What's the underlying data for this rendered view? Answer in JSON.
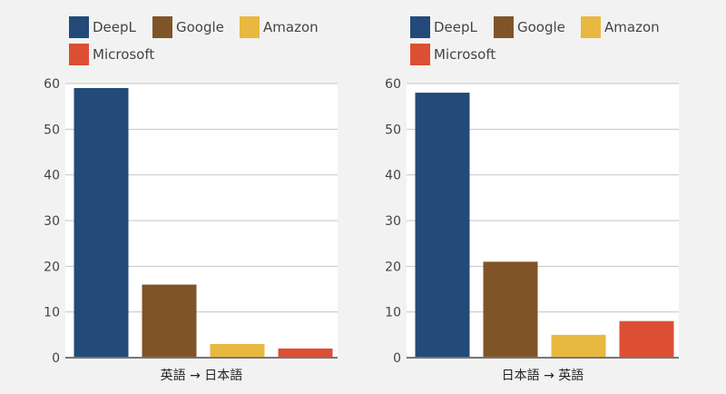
{
  "chart_data": [
    {
      "type": "bar",
      "categories": [
        "英語 → 日本語"
      ],
      "series": [
        {
          "name": "DeepL",
          "values": [
            59
          ]
        },
        {
          "name": "Google",
          "values": [
            16
          ]
        },
        {
          "name": "Amazon",
          "values": [
            3
          ]
        },
        {
          "name": "Microsoft",
          "values": [
            2
          ]
        }
      ],
      "ylim": [
        0,
        60
      ],
      "yticks": [
        0,
        10,
        20,
        30,
        40,
        50,
        60
      ],
      "grid": true,
      "legend": "top"
    },
    {
      "type": "bar",
      "categories": [
        "日本語 → 英語"
      ],
      "series": [
        {
          "name": "DeepL",
          "values": [
            58
          ]
        },
        {
          "name": "Google",
          "values": [
            21
          ]
        },
        {
          "name": "Amazon",
          "values": [
            5
          ]
        },
        {
          "name": "Microsoft",
          "values": [
            8
          ]
        }
      ],
      "ylim": [
        0,
        60
      ],
      "yticks": [
        0,
        10,
        20,
        30,
        40,
        50,
        60
      ],
      "grid": true,
      "legend": "top"
    }
  ],
  "colors": {
    "DeepL": "#234a78",
    "Google": "#7f5527",
    "Amazon": "#e9b840",
    "Microsoft": "#dd4f33"
  }
}
